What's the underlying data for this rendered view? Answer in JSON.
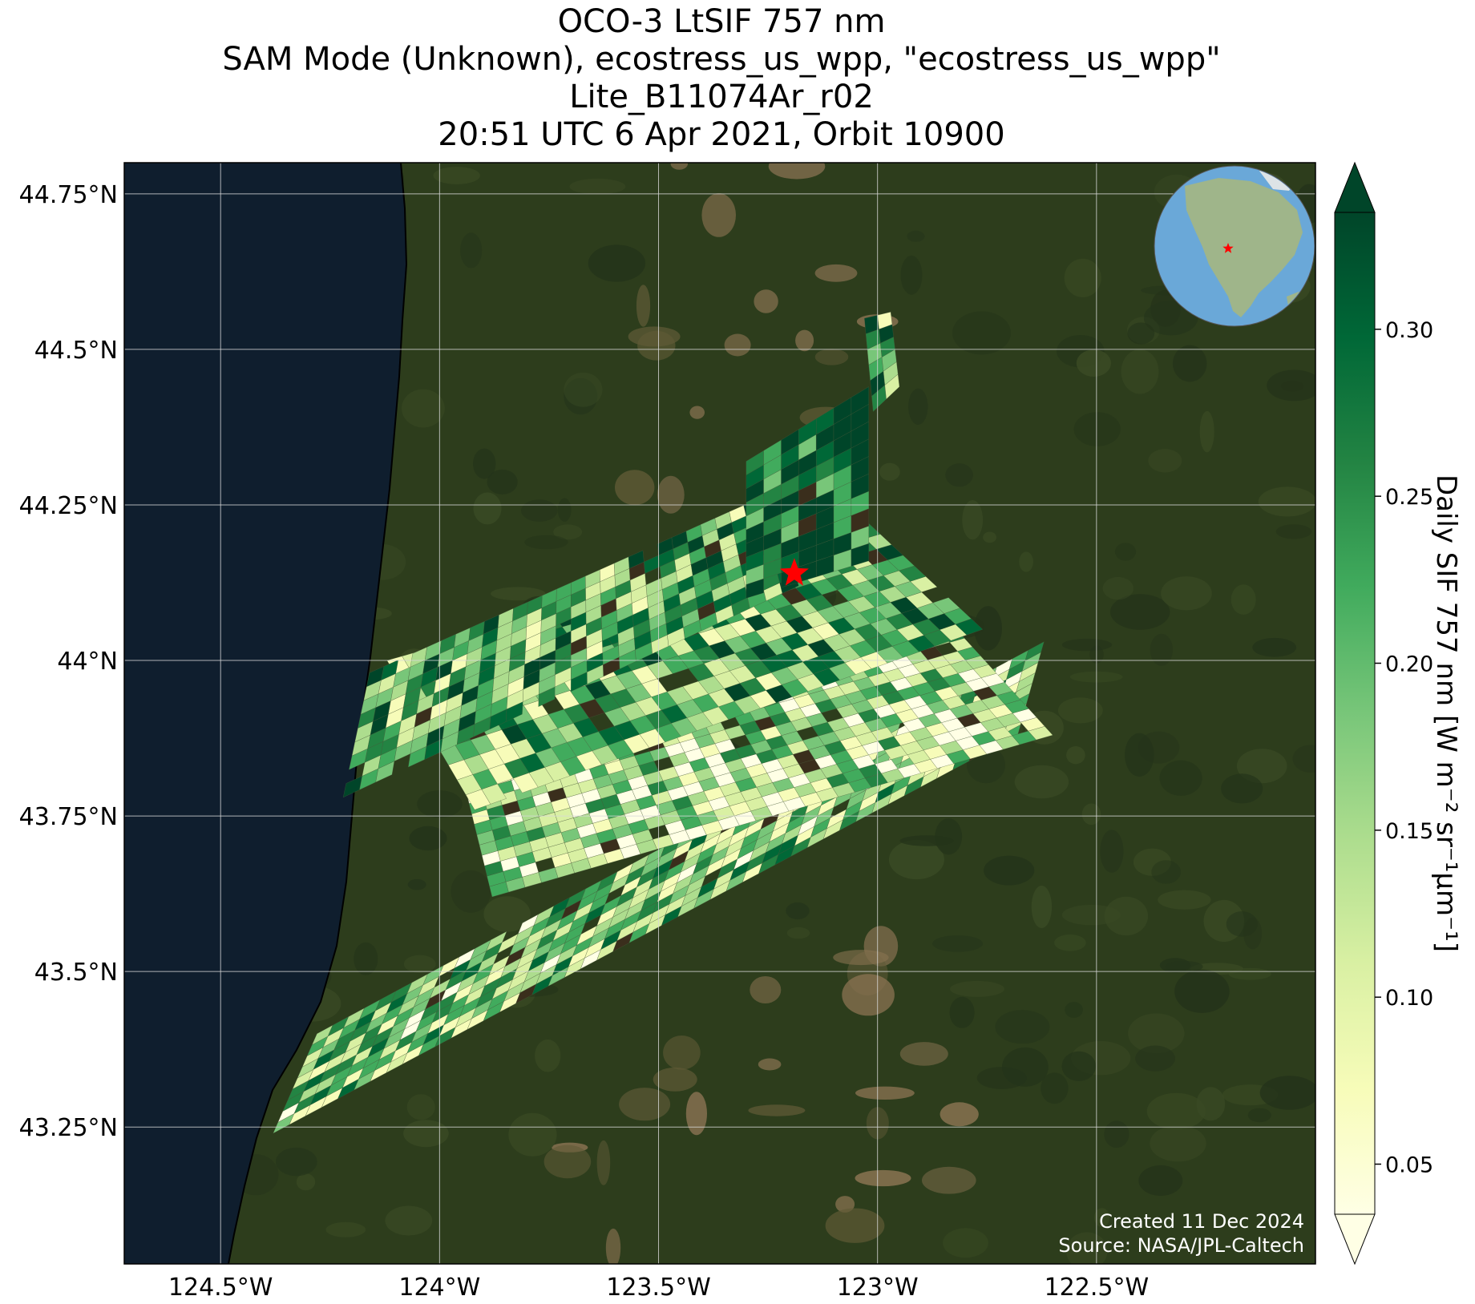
{
  "title_lines": [
    "OCO-3 LtSIF 757 nm",
    "SAM Mode (Unknown), ecostress_us_wpp, \"ecostress_us_wpp\"",
    "Lite_B11074Ar_r02",
    "20:51 UTC 6 Apr 2021, Orbit 10900"
  ],
  "map": {
    "lon_range": [
      -124.72,
      -122.0
    ],
    "lat_range": [
      43.03,
      44.8
    ],
    "lon_ticks": [
      {
        "value": -124.5,
        "label": "124.5°W"
      },
      {
        "value": -124.0,
        "label": "124°W"
      },
      {
        "value": -123.5,
        "label": "123.5°W"
      },
      {
        "value": -123.0,
        "label": "123°W"
      },
      {
        "value": -122.5,
        "label": "122.5°W"
      }
    ],
    "lat_ticks": [
      {
        "value": 44.75,
        "label": "44.75°N"
      },
      {
        "value": 44.5,
        "label": "44.5°N"
      },
      {
        "value": 44.25,
        "label": "44.25°N"
      },
      {
        "value": 44.0,
        "label": "44°N"
      },
      {
        "value": 43.75,
        "label": "43.75°N"
      },
      {
        "value": 43.5,
        "label": "43.5°N"
      },
      {
        "value": 43.25,
        "label": "43.25°N"
      }
    ],
    "target_marker": {
      "lon": -123.19,
      "lat": 44.14,
      "color": "#ff0000",
      "shape": "star"
    },
    "basemap": {
      "ocean": "#0f1e2e",
      "forest": "#2d3d1c",
      "farmland": "#7a6a4a"
    }
  },
  "colorbar": {
    "label": "Daily SIF 757 nm [W m⁻² sr⁻¹μm⁻¹]",
    "range": [
      0.035,
      0.335
    ],
    "ticks": [
      {
        "value": 0.3,
        "label": "0.30"
      },
      {
        "value": 0.25,
        "label": "0.25"
      },
      {
        "value": 0.2,
        "label": "0.20"
      },
      {
        "value": 0.15,
        "label": "0.15"
      },
      {
        "value": 0.1,
        "label": "0.10"
      },
      {
        "value": 0.05,
        "label": "0.05"
      }
    ],
    "colormap": "YlGn",
    "colors": [
      "#ffffe5",
      "#f7fcb9",
      "#d9f0a3",
      "#addd8e",
      "#78c679",
      "#41ab5d",
      "#238443",
      "#006837",
      "#004529"
    ],
    "extend": "both"
  },
  "inset_globe": {
    "ocean": "#6aa8d8",
    "land": "#9fb58a",
    "marker_color": "#ff0000"
  },
  "credit": {
    "created": "Created 11 Dec 2024",
    "source": "Source: NASA/JPL-Caltech"
  }
}
